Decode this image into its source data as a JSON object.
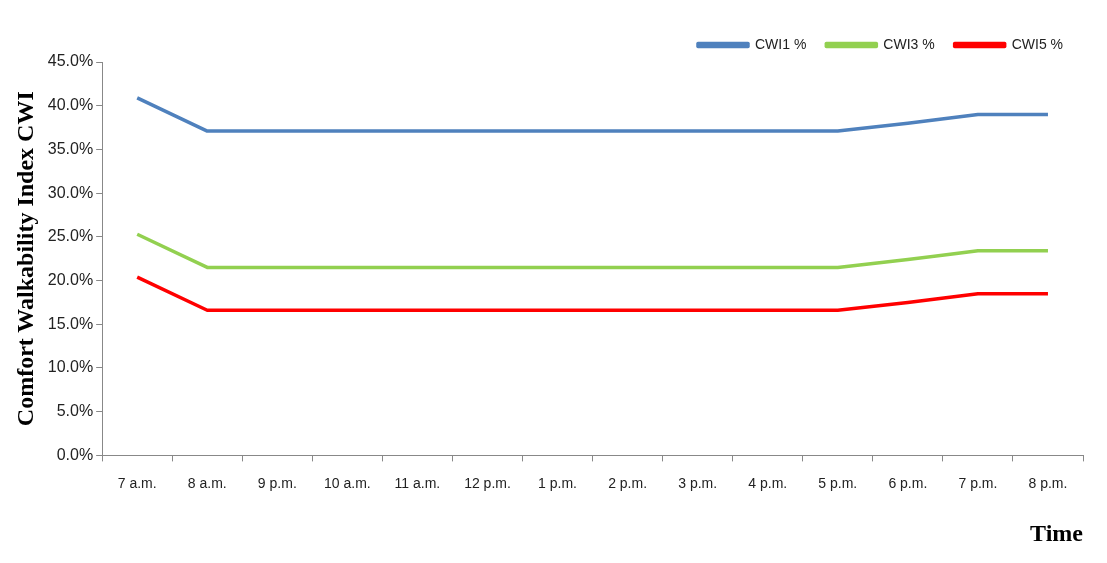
{
  "chart_data": {
    "type": "line",
    "ylabel": "Comfort Walkability Index CWI",
    "xlabel": "Time",
    "categories": [
      "7 a.m.",
      "8 a.m.",
      "9 p.m.",
      "10 a.m.",
      "11 a.m.",
      "12 p.m.",
      "1 p.m.",
      "2 p.m.",
      "3 p.m.",
      "4 p.m.",
      "5 p.m.",
      "6 p.m.",
      "7 p.m.",
      "8 p.m."
    ],
    "series": [
      {
        "name": "CWI1 %",
        "color": "#4f81bd",
        "values": [
          40.9,
          37.1,
          37.1,
          37.1,
          37.1,
          37.1,
          37.1,
          37.1,
          37.1,
          37.1,
          37.1,
          38.0,
          39.0,
          39.0
        ]
      },
      {
        "name": "CWI3 %",
        "color": "#92d050",
        "values": [
          25.3,
          21.5,
          21.5,
          21.5,
          21.5,
          21.5,
          21.5,
          21.5,
          21.5,
          21.5,
          21.5,
          22.4,
          23.4,
          23.4
        ]
      },
      {
        "name": "CWI5 %",
        "color": "#ff0000",
        "values": [
          20.4,
          16.6,
          16.6,
          16.6,
          16.6,
          16.6,
          16.6,
          16.6,
          16.6,
          16.6,
          16.6,
          17.5,
          18.5,
          18.5
        ]
      }
    ],
    "ylim": [
      0,
      45
    ],
    "yticks": [
      {
        "value": 0,
        "label": "0.0%"
      },
      {
        "value": 5,
        "label": "5.0%"
      },
      {
        "value": 10,
        "label": "10.0%"
      },
      {
        "value": 15,
        "label": "15.0%"
      },
      {
        "value": 20,
        "label": "20.0%"
      },
      {
        "value": 25,
        "label": "25.0%"
      },
      {
        "value": 30,
        "label": "30.0%"
      },
      {
        "value": 35,
        "label": "35.0%"
      },
      {
        "value": 40,
        "label": "40.0%"
      },
      {
        "value": 45,
        "label": "45.0%"
      }
    ],
    "grid": false,
    "legend": "top",
    "marker": "none",
    "line_style": "solid"
  }
}
